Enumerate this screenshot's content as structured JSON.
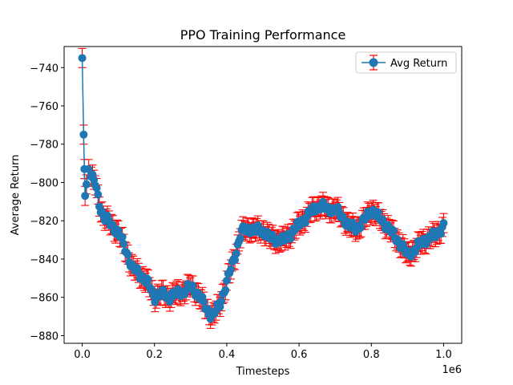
{
  "chart_data": {
    "type": "line",
    "title": "PPO Training Performance",
    "xlabel": "Timesteps",
    "ylabel": "Average Return",
    "x_offset_label": "1e6",
    "xlim": [
      -0.05,
      1.05
    ],
    "ylim": [
      -884,
      -729
    ],
    "x_ticks": [
      0.0,
      0.2,
      0.4,
      0.6,
      0.8,
      1.0
    ],
    "x_tick_labels": [
      "0.0",
      "0.2",
      "0.4",
      "0.6",
      "0.8",
      "1.0"
    ],
    "y_ticks": [
      -740,
      -760,
      -780,
      -800,
      -820,
      -840,
      -860,
      -880
    ],
    "y_tick_labels": [
      "−740",
      "−760",
      "−780",
      "−800",
      "−820",
      "−840",
      "−860",
      "−880"
    ],
    "grid": false,
    "legend_position": "top-right",
    "colors": {
      "line": "#1f77b4",
      "errorbar": "#ff0000"
    },
    "series": [
      {
        "name": "Avg Return",
        "keypoints": [
          [
            0.0,
            -735
          ],
          [
            0.004,
            -775
          ],
          [
            0.006,
            -793
          ],
          [
            0.008,
            -807
          ],
          [
            0.012,
            -801
          ],
          [
            0.018,
            -793
          ],
          [
            0.025,
            -797
          ],
          [
            0.035,
            -800
          ],
          [
            0.05,
            -813
          ],
          [
            0.06,
            -818
          ],
          [
            0.08,
            -822
          ],
          [
            0.1,
            -826
          ],
          [
            0.12,
            -835
          ],
          [
            0.14,
            -845
          ],
          [
            0.16,
            -848
          ],
          [
            0.18,
            -852
          ],
          [
            0.2,
            -860
          ],
          [
            0.22,
            -858
          ],
          [
            0.24,
            -860
          ],
          [
            0.26,
            -858
          ],
          [
            0.28,
            -857
          ],
          [
            0.3,
            -854
          ],
          [
            0.32,
            -858
          ],
          [
            0.34,
            -865
          ],
          [
            0.36,
            -870
          ],
          [
            0.38,
            -864
          ],
          [
            0.4,
            -852
          ],
          [
            0.42,
            -840
          ],
          [
            0.44,
            -826
          ],
          [
            0.46,
            -824
          ],
          [
            0.48,
            -825
          ],
          [
            0.5,
            -825
          ],
          [
            0.52,
            -829
          ],
          [
            0.54,
            -830
          ],
          [
            0.56,
            -830
          ],
          [
            0.58,
            -826
          ],
          [
            0.6,
            -822
          ],
          [
            0.62,
            -818
          ],
          [
            0.64,
            -814
          ],
          [
            0.66,
            -812
          ],
          [
            0.68,
            -814
          ],
          [
            0.7,
            -814
          ],
          [
            0.72,
            -818
          ],
          [
            0.74,
            -823
          ],
          [
            0.76,
            -824
          ],
          [
            0.78,
            -820
          ],
          [
            0.8,
            -814
          ],
          [
            0.82,
            -818
          ],
          [
            0.84,
            -822
          ],
          [
            0.86,
            -827
          ],
          [
            0.88,
            -832
          ],
          [
            0.9,
            -838
          ],
          [
            0.92,
            -835
          ],
          [
            0.94,
            -831
          ],
          [
            0.96,
            -829
          ],
          [
            0.98,
            -827
          ],
          [
            1.0,
            -823
          ]
        ],
        "error": 5
      }
    ]
  }
}
